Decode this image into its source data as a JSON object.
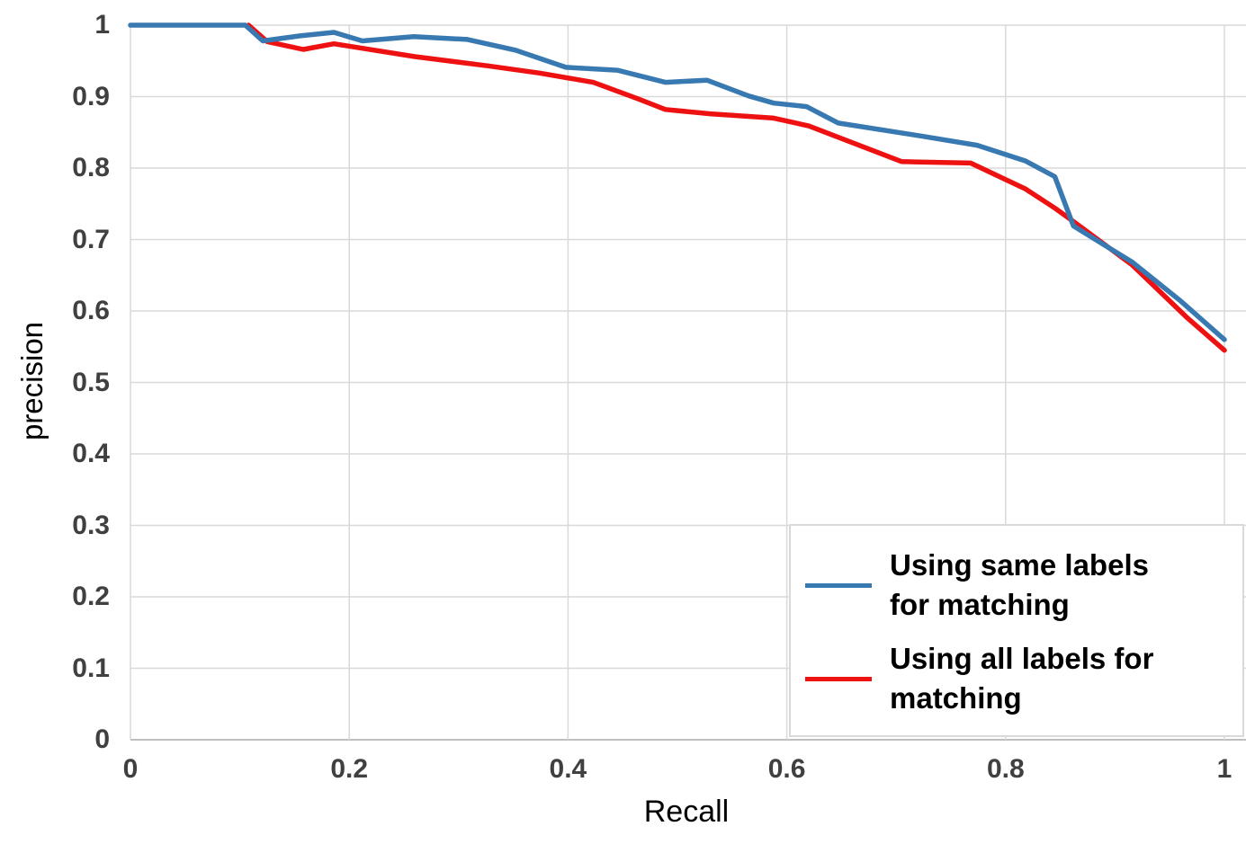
{
  "axes": {
    "x": {
      "title": "Recall",
      "ticks": [
        {
          "label": "0",
          "value": 0
        },
        {
          "label": "0.2",
          "value": 0.2
        },
        {
          "label": "0.4",
          "value": 0.4
        },
        {
          "label": "0.6",
          "value": 0.6
        },
        {
          "label": "0.8",
          "value": 0.8
        },
        {
          "label": "1",
          "value": 1
        }
      ]
    },
    "y": {
      "title": "precision",
      "ticks": [
        {
          "label": "0",
          "value": 0
        },
        {
          "label": "0.1",
          "value": 0.1
        },
        {
          "label": "0.2",
          "value": 0.2
        },
        {
          "label": "0.3",
          "value": 0.3
        },
        {
          "label": "0.4",
          "value": 0.4
        },
        {
          "label": "0.5",
          "value": 0.5
        },
        {
          "label": "0.6",
          "value": 0.6
        },
        {
          "label": "0.7",
          "value": 0.7
        },
        {
          "label": "0.8",
          "value": 0.8
        },
        {
          "label": "0.9",
          "value": 0.9
        },
        {
          "label": "1",
          "value": 1
        }
      ]
    }
  },
  "legend": {
    "items": [
      {
        "label": "Using same labels for matching",
        "lines": [
          "Using same labels",
          "for matching"
        ],
        "color": "#3879B1"
      },
      {
        "label": "Using all labels for matching",
        "lines": [
          "Using all labels for",
          "matching"
        ],
        "color": "#EE1111"
      }
    ]
  },
  "styling": {
    "series_blue": "#3879B1",
    "series_red": "#EE1111",
    "gridline": "#D9D9D9",
    "axis_line": "#BFBFBF",
    "tick_label": "#404040",
    "legend_border": "#D9D9D9",
    "background": "#FFFFFF"
  },
  "chart_data": {
    "type": "line",
    "title": "",
    "xlabel": "Recall",
    "ylabel": "precision",
    "xlim": [
      0,
      1
    ],
    "ylim": [
      0,
      1
    ],
    "grid": true,
    "legend_position": "lower right",
    "series": [
      {
        "name": "Using all labels for matching",
        "color": "#EE1111",
        "points": [
          [
            0.108,
            1.0
          ],
          [
            0.125,
            0.977
          ],
          [
            0.158,
            0.966
          ],
          [
            0.186,
            0.974
          ],
          [
            0.26,
            0.956
          ],
          [
            0.327,
            0.943
          ],
          [
            0.374,
            0.933
          ],
          [
            0.423,
            0.92
          ],
          [
            0.464,
            0.897
          ],
          [
            0.489,
            0.882
          ],
          [
            0.53,
            0.876
          ],
          [
            0.588,
            0.87
          ],
          [
            0.62,
            0.859
          ],
          [
            0.705,
            0.809
          ],
          [
            0.768,
            0.807
          ],
          [
            0.818,
            0.771
          ],
          [
            0.845,
            0.744
          ],
          [
            0.864,
            0.723
          ],
          [
            0.916,
            0.664
          ],
          [
            0.965,
            0.592
          ],
          [
            1.0,
            0.545
          ]
        ]
      },
      {
        "name": "Using same labels for matching",
        "color": "#3879B1",
        "points": [
          [
            0.0,
            1.0
          ],
          [
            0.105,
            1.0
          ],
          [
            0.121,
            0.978
          ],
          [
            0.155,
            0.985
          ],
          [
            0.186,
            0.99
          ],
          [
            0.212,
            0.978
          ],
          [
            0.259,
            0.984
          ],
          [
            0.308,
            0.98
          ],
          [
            0.352,
            0.965
          ],
          [
            0.398,
            0.941
          ],
          [
            0.445,
            0.937
          ],
          [
            0.489,
            0.92
          ],
          [
            0.527,
            0.923
          ],
          [
            0.565,
            0.901
          ],
          [
            0.588,
            0.891
          ],
          [
            0.618,
            0.886
          ],
          [
            0.647,
            0.863
          ],
          [
            0.722,
            0.845
          ],
          [
            0.774,
            0.832
          ],
          [
            0.818,
            0.81
          ],
          [
            0.845,
            0.788
          ],
          [
            0.862,
            0.719
          ],
          [
            0.916,
            0.668
          ],
          [
            0.96,
            0.614
          ],
          [
            1.0,
            0.56
          ]
        ]
      }
    ]
  }
}
